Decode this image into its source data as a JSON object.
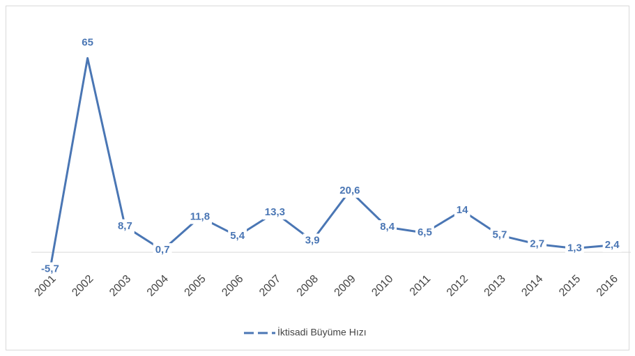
{
  "chart_data": {
    "type": "line",
    "categories": [
      "2001",
      "2002",
      "2003",
      "2004",
      "2005",
      "2006",
      "2007",
      "2008",
      "2009",
      "2010",
      "2011",
      "2012",
      "2013",
      "2014",
      "2015",
      "2016"
    ],
    "series": [
      {
        "name": "İktisadi Büyüme Hızı",
        "color": "#4a76b4",
        "values": [
          -5.7,
          65,
          8.7,
          0.7,
          11.8,
          5.4,
          13.3,
          3.9,
          20.6,
          8.4,
          6.5,
          14,
          5.7,
          2.7,
          1.3,
          2.4
        ],
        "value_labels": [
          "-5,7",
          "65",
          "8,7",
          "0,7",
          "11,8",
          "5,4",
          "13,3",
          "3,9",
          "20,6",
          "8,4",
          "6,5",
          "14",
          "5,7",
          "2,7",
          "1,3",
          "2,4"
        ]
      }
    ],
    "ylim": [
      -10,
      70
    ],
    "legend": "bottom"
  }
}
